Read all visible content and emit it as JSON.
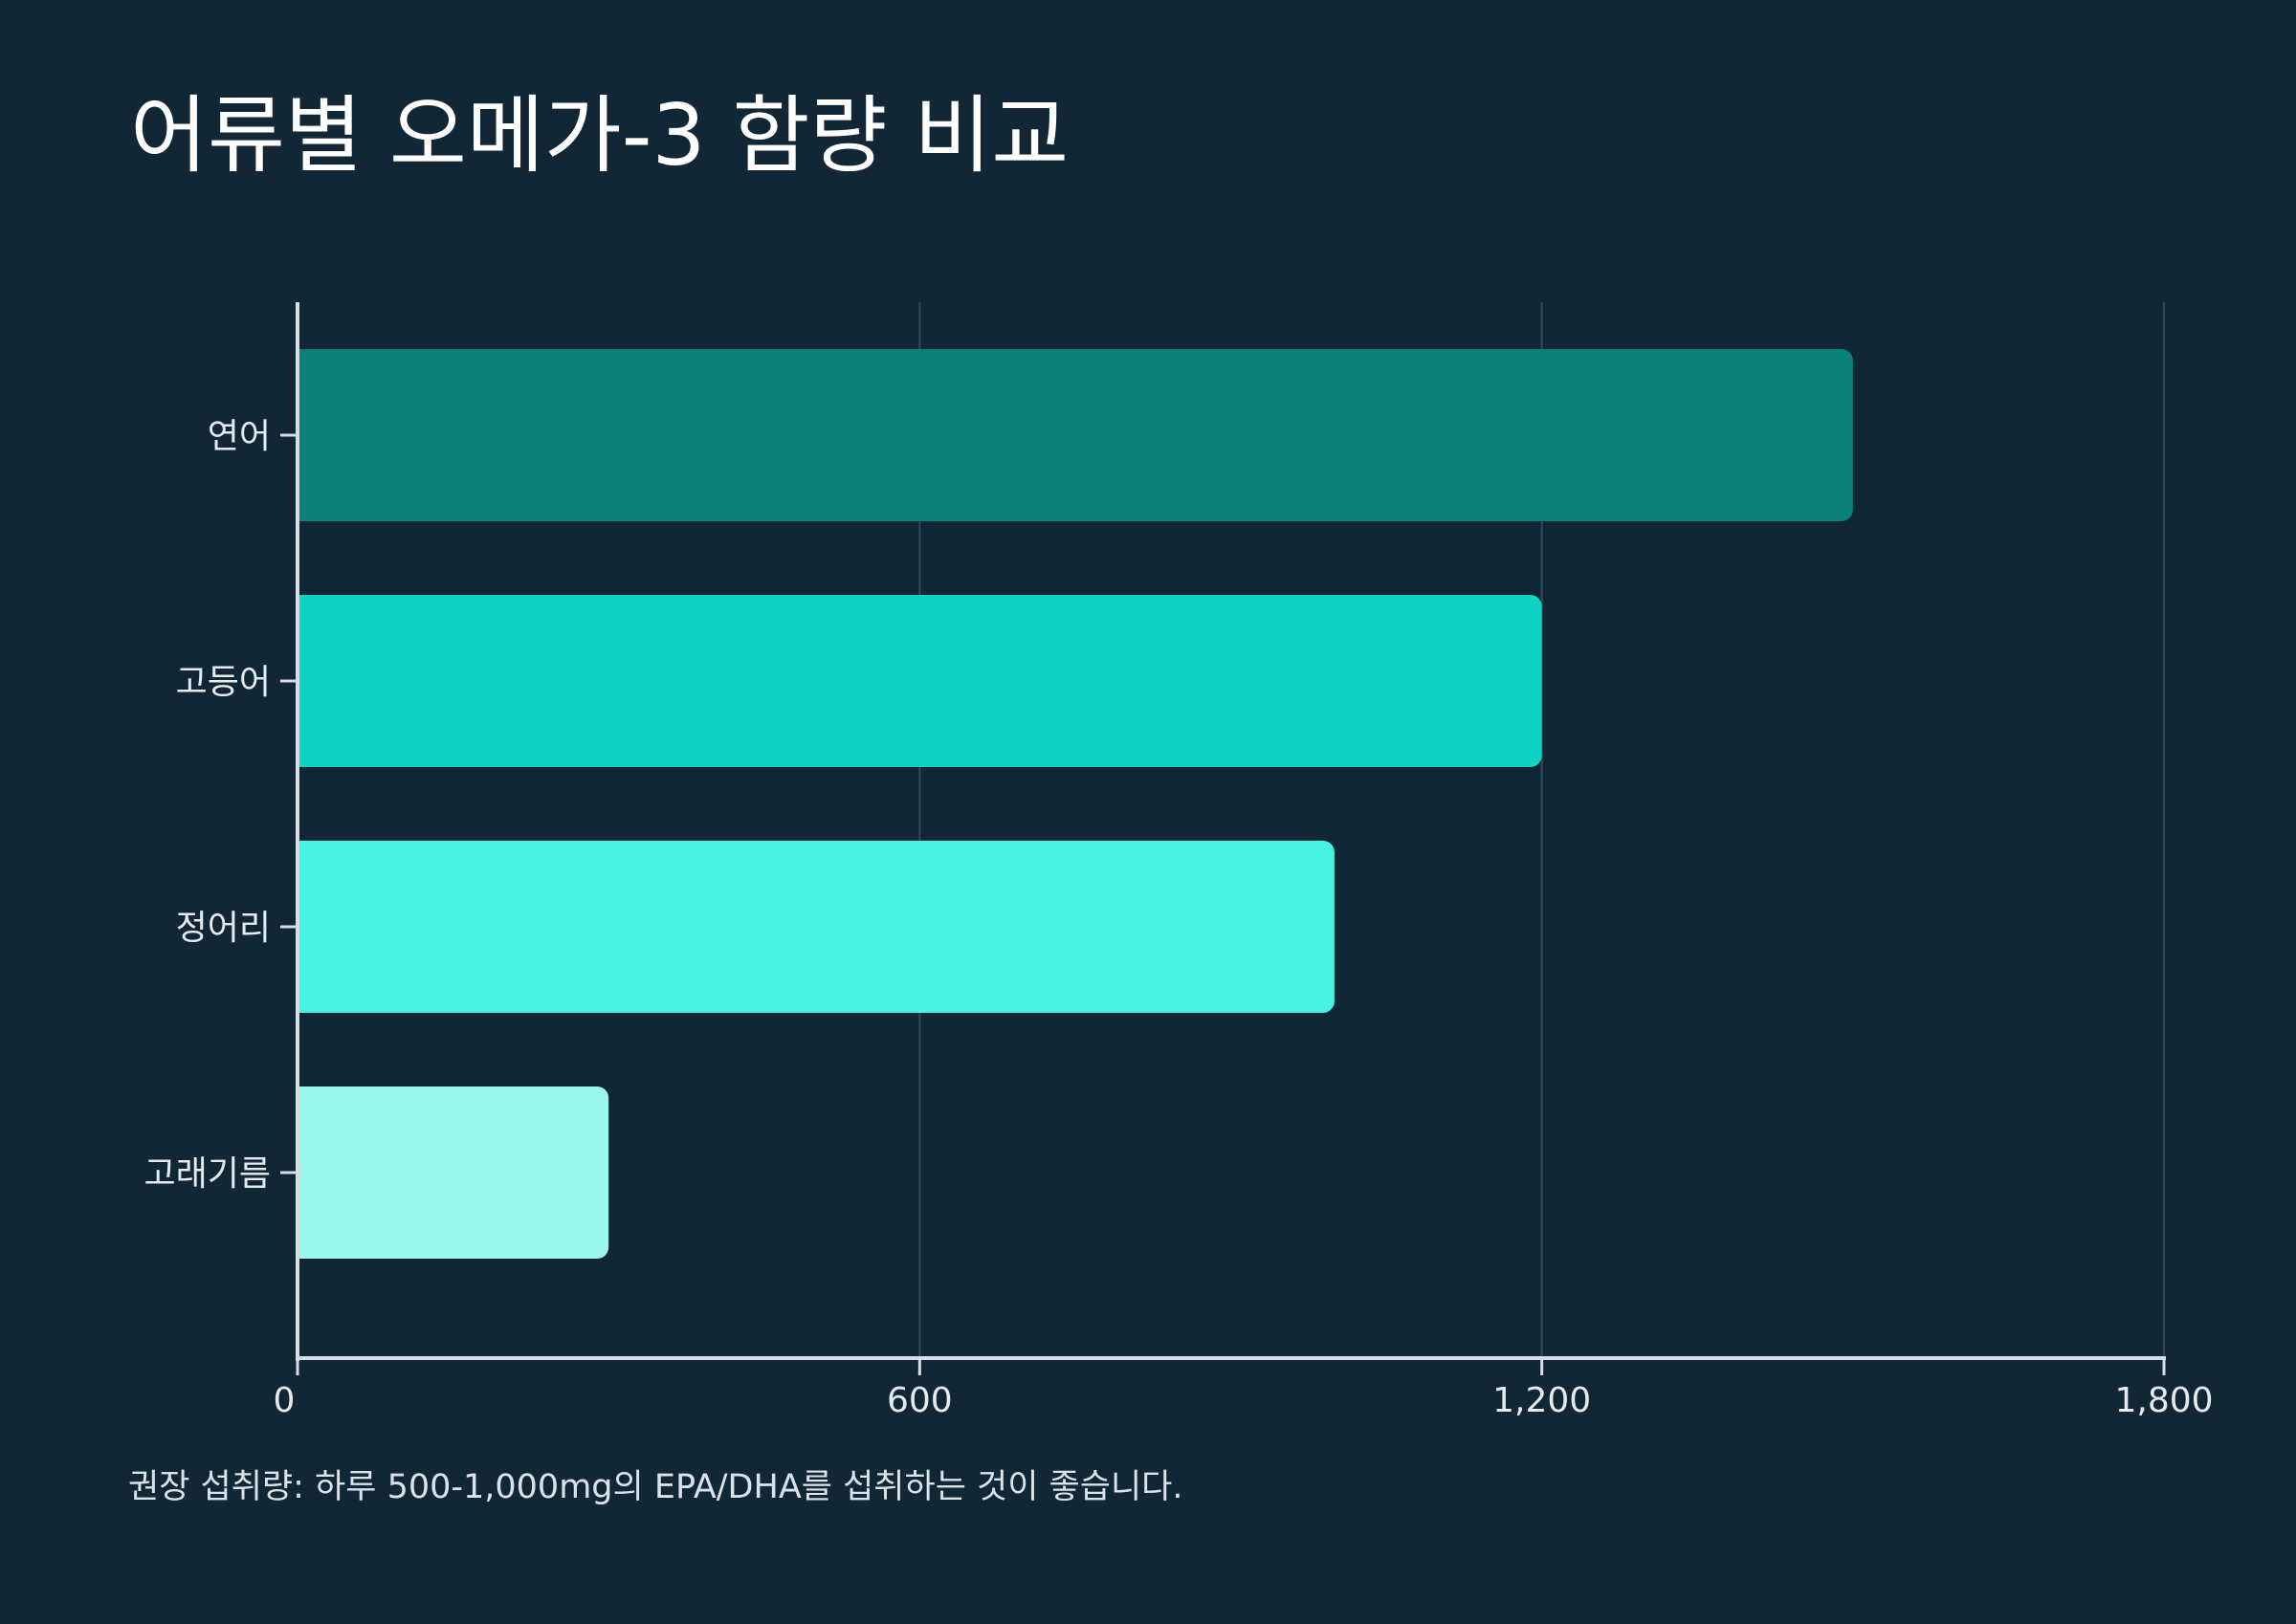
{
  "chart_data": {
    "type": "bar",
    "orientation": "horizontal",
    "title": "어류별 오메가-3 함량 비교",
    "categories": [
      "연어",
      "고등어",
      "정어리",
      "고래기름"
    ],
    "values": [
      1500,
      1200,
      1000,
      300
    ],
    "colors": [
      "#0b8177",
      "#0fd3c2",
      "#45f3e3",
      "#9af7ee"
    ],
    "xlim": [
      0,
      1800
    ],
    "xticks": [
      0,
      600,
      1200,
      1800
    ],
    "xtick_labels": [
      "0",
      "600",
      "1,200",
      "1,800"
    ],
    "xlabel": "",
    "ylabel": "",
    "grid": "vertical",
    "legend": "none"
  },
  "footnote": "권장 섭취량: 하루 500-1,000mg의 EPA/DHA를 섭취하는 것이 좋습니다.",
  "colors": {
    "background": "#122736",
    "axis": "#d8dee6",
    "grid": "#34485a",
    "text": "#ffffff",
    "tick_text": "#e6ebf0"
  }
}
